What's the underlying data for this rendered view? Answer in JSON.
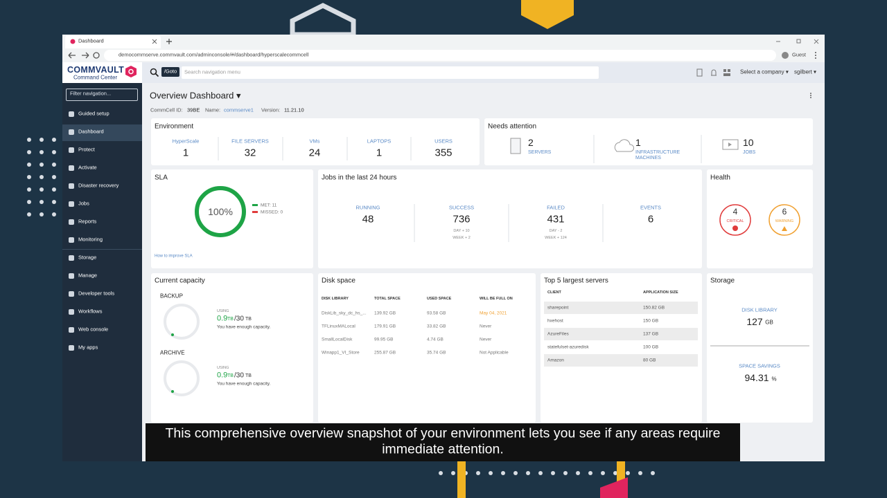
{
  "browser": {
    "tab": "Dashboard",
    "url": "democommserve.commvault.com/adminconsole/#/dashboard/hyperscalecommcell",
    "profile": "Guest"
  },
  "header": {
    "brand": "COMMVAULT",
    "product": "Command Center",
    "goto": "/Goto",
    "search_placeholder": "Search navigation menu",
    "company": "Select a company ▾",
    "user": "sgilbert ▾"
  },
  "sidebar": {
    "filter": "Filter navigation...",
    "items": [
      "Guided setup",
      "Dashboard",
      "Protect",
      "Activate",
      "Disaster recovery",
      "Jobs",
      "Reports",
      "Monitoring",
      "Storage",
      "Manage",
      "Developer tools",
      "Workflows",
      "Web console",
      "My apps"
    ]
  },
  "page": {
    "title": "Overview Dashboard ▾",
    "commcell_id_label": "CommCell ID:",
    "commcell_id": "39BE",
    "name_label": "Name:",
    "name": "commserve1",
    "version_label": "Version:",
    "version": "11.21.10"
  },
  "environment": {
    "title": "Environment",
    "items": [
      {
        "label": "HyperScale",
        "value": 1
      },
      {
        "label": "FILE SERVERS",
        "value": 32
      },
      {
        "label": "VMs",
        "value": 24
      },
      {
        "label": "LAPTOPS",
        "value": 1
      },
      {
        "label": "USERS",
        "value": 355
      }
    ]
  },
  "needs_attention": {
    "title": "Needs attention",
    "items": [
      {
        "value": 2,
        "label": "SERVERS"
      },
      {
        "value": 1,
        "label": "INFRASTRUCTURE MACHINES"
      },
      {
        "value": 10,
        "label": "JOBS"
      }
    ]
  },
  "sla": {
    "title": "SLA",
    "percent": "100%",
    "met": "MET: 11",
    "missed": "MISSED: 0",
    "link": "How to improve SLA"
  },
  "jobs": {
    "title": "Jobs in the last 24 hours",
    "items": [
      {
        "label": "RUNNING",
        "value": 48
      },
      {
        "label": "SUCCESS",
        "value": 736,
        "day": "DAY + 10",
        "week": "WEEK + 2"
      },
      {
        "label": "FAILED",
        "value": 431,
        "day": "DAY - 2",
        "week": "WEEK + 124"
      },
      {
        "label": "EVENTS",
        "value": 6
      }
    ]
  },
  "health": {
    "title": "Health",
    "critical": {
      "value": 4,
      "label": "CRITICAL"
    },
    "warning": {
      "value": 6,
      "label": "WARNING"
    }
  },
  "capacity": {
    "title": "Current capacity",
    "groups": [
      {
        "name": "BACKUP",
        "using": "USING",
        "used": "0.9",
        "used_unit": "TB",
        "total": "/30",
        "total_unit": "TB",
        "note": "You have enough capacity."
      },
      {
        "name": "ARCHIVE",
        "using": "USING",
        "used": "0.9",
        "used_unit": "TB",
        "total": "/30",
        "total_unit": "TB",
        "note": "You have enough capacity."
      }
    ]
  },
  "disk_space": {
    "title": "Disk space",
    "columns": [
      "DISK LIBRARY",
      "TOTAL SPACE",
      "USED SPACE",
      "WILL BE FULL ON"
    ],
    "rows": [
      [
        "DiskLib_sky_dc_hs_...",
        "139.92 GB",
        "93.58 GB",
        "May 04, 2021"
      ],
      [
        "TFLinuxMALocal",
        "179.91 GB",
        "33.82 GB",
        "Never"
      ],
      [
        "SmallLocalDisk",
        "99.95 GB",
        "4.74 GB",
        "Never"
      ],
      [
        "Winapp1_VI_Store",
        "255.87 GB",
        "35.74 GB",
        "Not Applicable"
      ]
    ]
  },
  "top_servers": {
    "title": "Top 5 largest servers",
    "columns": [
      "CLIENT",
      "APPLICATION SIZE"
    ],
    "rows": [
      [
        "sharepoint",
        "150.82 GB"
      ],
      [
        "hxehost",
        "150 GB"
      ],
      [
        "AzureFiles",
        "137 GB"
      ],
      [
        "statefulset-azuredisk",
        "100 GB"
      ],
      [
        "Amazon",
        "80 GB"
      ]
    ]
  },
  "storage": {
    "title": "Storage",
    "disk_library_label": "DISK LIBRARY",
    "disk_library": "127",
    "disk_unit": "GB",
    "savings_label": "SPACE SAVINGS",
    "savings": "94.31",
    "savings_unit": "%"
  },
  "caption": "This comprehensive overview snapshot of your environment lets you see if any areas require immediate attention."
}
